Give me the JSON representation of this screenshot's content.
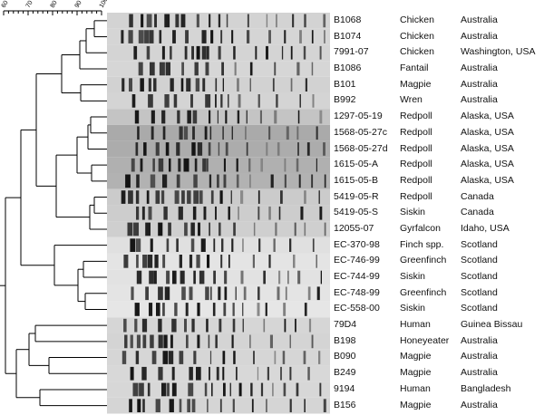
{
  "scale": {
    "ticks": [
      "60",
      "70",
      "80",
      "90",
      "100"
    ]
  },
  "rows": [
    {
      "isolate": "B1068",
      "source": "Chicken",
      "location": "Australia"
    },
    {
      "isolate": "B1074",
      "source": "Chicken",
      "location": "Australia"
    },
    {
      "isolate": "7991-07",
      "source": "Chicken",
      "location": "Washington, USA"
    },
    {
      "isolate": "B1086",
      "source": "Fantail",
      "location": "Australia"
    },
    {
      "isolate": "B101",
      "source": "Magpie",
      "location": "Australia"
    },
    {
      "isolate": "B992",
      "source": "Wren",
      "location": "Australia"
    },
    {
      "isolate": "1297-05-19",
      "source": "Redpoll",
      "location": "Alaska, USA"
    },
    {
      "isolate": "1568-05-27c",
      "source": "Redpoll",
      "location": "Alaska, USA"
    },
    {
      "isolate": "1568-05-27d",
      "source": "Redpoll",
      "location": "Alaska, USA"
    },
    {
      "isolate": "1615-05-A",
      "source": "Redpoll",
      "location": "Alaska, USA"
    },
    {
      "isolate": "1615-05-B",
      "source": "Redpoll",
      "location": "Alaska, USA"
    },
    {
      "isolate": "5419-05-R",
      "source": "Redpoll",
      "location": "Canada"
    },
    {
      "isolate": "5419-05-S",
      "source": "Siskin",
      "location": "Canada"
    },
    {
      "isolate": "12055-07",
      "source": "Gyrfalcon",
      "location": "Idaho, USA"
    },
    {
      "isolate": "EC-370-98",
      "source": "Finch spp.",
      "location": "Scotland"
    },
    {
      "isolate": "EC-746-99",
      "source": "Greenfinch",
      "location": "Scotland"
    },
    {
      "isolate": "EC-744-99",
      "source": "Siskin",
      "location": "Scotland"
    },
    {
      "isolate": "EC-748-99",
      "source": "Greenfinch",
      "location": "Scotland"
    },
    {
      "isolate": "EC-558-00",
      "source": "Siskin",
      "location": "Scotland"
    },
    {
      "isolate": "79D4",
      "source": "Human",
      "location": "Guinea Bissau"
    },
    {
      "isolate": "B198",
      "source": "Honeyeater",
      "location": "Australia"
    },
    {
      "isolate": "B090",
      "source": "Magpie",
      "location": "Australia"
    },
    {
      "isolate": "B249",
      "source": "Magpie",
      "location": "Australia"
    },
    {
      "isolate": "9194",
      "source": "Human",
      "location": "Bangladesh"
    },
    {
      "isolate": "B156",
      "source": "Magpie",
      "location": "Australia"
    }
  ]
}
